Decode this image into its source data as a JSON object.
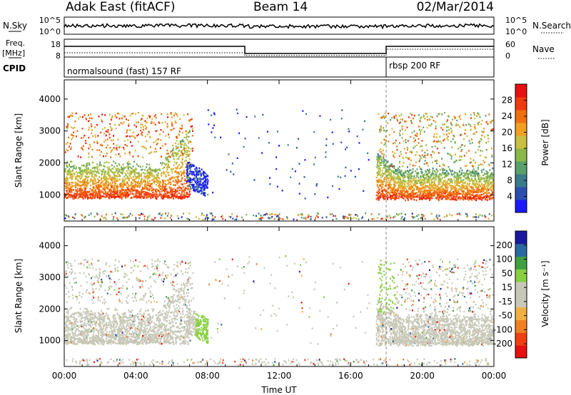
{
  "header": {
    "station": "Adak East (fitACF)",
    "beam": "Beam 14",
    "date": "02/Mar/2014"
  },
  "top_panels": {
    "nsky_label": "N.Sky",
    "nsky_ticks": [
      "10^5",
      "10^0"
    ],
    "nsearch_label": "N.Search",
    "nsearch_ticks": [
      "10^5",
      "10^0"
    ],
    "freq_label_line1": "Freq.",
    "freq_label_line2": "[MHz]",
    "freq_ticks": [
      "18",
      "8"
    ],
    "nave_label": "Nave",
    "nave_ticks": [
      "60",
      "0"
    ],
    "cpid_label": "CPID",
    "cpid_modes": [
      {
        "label": "normalsound (fast) 157 RF"
      },
      {
        "label": "rbsp 200 RF"
      }
    ]
  },
  "colors": {
    "power": [
      "#1a1aff",
      "#2a4fb0",
      "#3a7a8a",
      "#5aa06a",
      "#8ab848",
      "#c8c040",
      "#f0a020",
      "#f07010",
      "#f03a10",
      "#e81010"
    ],
    "velocity": [
      "#e81010",
      "#f04010",
      "#f08020",
      "#f0b040",
      "#c8c8b8",
      "#c8c8b8",
      "#88d040",
      "#40a040",
      "#2a6aa0",
      "#1a1aa0"
    ],
    "ground_scatter": "#c8c8b8"
  },
  "chart_data": [
    {
      "type": "heatmap",
      "panel": "power",
      "ylabel": "Slant Range [km]",
      "xlabel": "Time UT",
      "x_ticks": [
        "00:00",
        "04:00",
        "08:00",
        "12:00",
        "16:00",
        "20:00",
        "00:00"
      ],
      "xlim_hours": [
        0,
        24
      ],
      "ylim_km": [
        180,
        4600
      ],
      "y_ticks": [
        1000,
        2000,
        3000,
        4000
      ],
      "colorbar_label": "Power [dB]",
      "colorbar_ticks": [
        "28",
        "24",
        "20",
        "16",
        "12",
        "8",
        "4"
      ],
      "colorbar_range": [
        0,
        30
      ],
      "mode_change_hour": 18
    },
    {
      "type": "heatmap",
      "panel": "velocity",
      "ylabel": "Slant Range [km]",
      "xlabel": "Time UT",
      "x_ticks": [
        "00:00",
        "04:00",
        "08:00",
        "12:00",
        "16:00",
        "20:00",
        "00:00"
      ],
      "xlim_hours": [
        0,
        24
      ],
      "ylim_km": [
        180,
        4600
      ],
      "y_ticks": [
        1000,
        2000,
        3000,
        4000
      ],
      "colorbar_label": "Velocity [m s⁻¹]",
      "colorbar_ticks": [
        "200",
        "100",
        "50",
        "15",
        "-15",
        "-50",
        "-100",
        "-200"
      ],
      "mode_change_hour": 18
    }
  ]
}
